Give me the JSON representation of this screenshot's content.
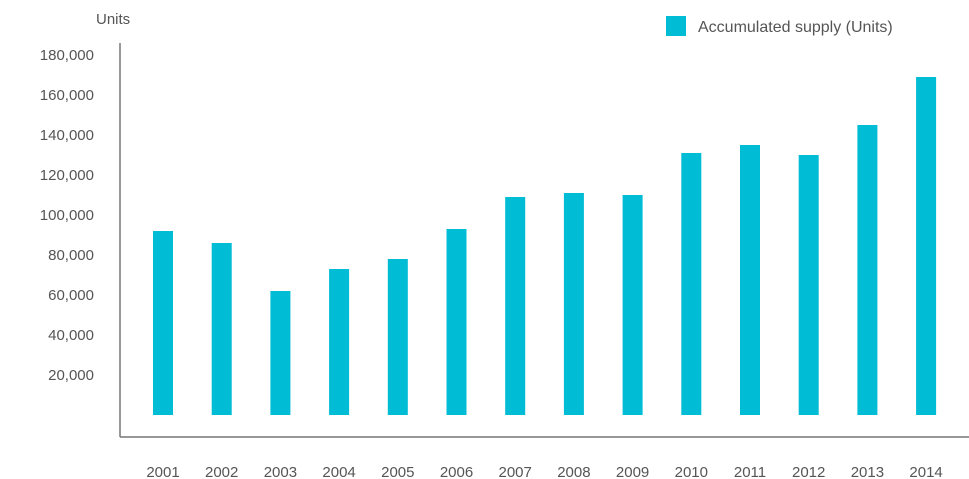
{
  "chart_data": {
    "type": "bar",
    "title": "",
    "xlabel": "",
    "ylabel": "Units",
    "ylim": [
      0,
      180000
    ],
    "yticks": [
      20000,
      40000,
      60000,
      80000,
      100000,
      120000,
      140000,
      160000,
      180000
    ],
    "ytick_labels": [
      "20,000",
      "40,000",
      "60,000",
      "80,000",
      "100,000",
      "120,000",
      "140,000",
      "160,000",
      "180,000"
    ],
    "categories": [
      "2001",
      "2002",
      "2003",
      "2004",
      "2005",
      "2006",
      "2007",
      "2008",
      "2009",
      "2010",
      "2011",
      "2012",
      "2013",
      "2014"
    ],
    "series": [
      {
        "name": "Accumulated supply (Units)",
        "color": "#00BCD4",
        "values": [
          92000,
          86000,
          62000,
          73000,
          78000,
          93000,
          109000,
          111000,
          110000,
          131000,
          135000,
          130000,
          145000,
          169000
        ]
      }
    ],
    "grid": false,
    "legend_position": "top-right"
  }
}
